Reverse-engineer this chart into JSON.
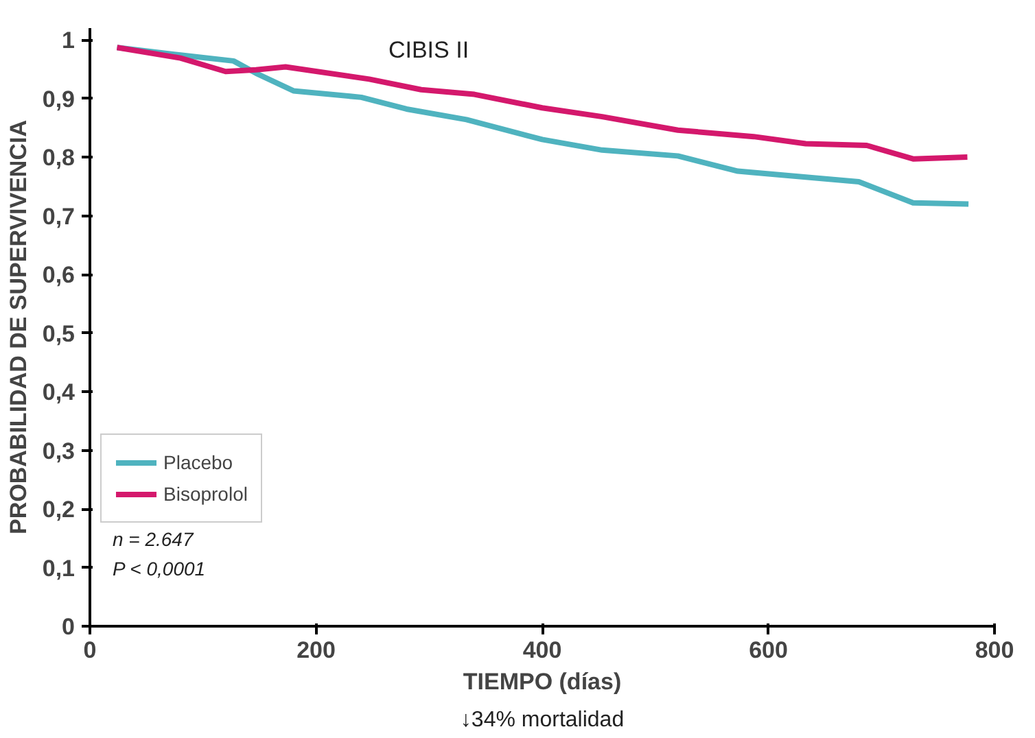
{
  "chart_data": {
    "type": "line",
    "title": "CIBIS II",
    "xlabel": "TIEMPO (días)",
    "ylabel": "PROBABILIDAD DE SUPERVIVENCIA",
    "xlim": [
      0,
      800
    ],
    "xticks": [
      0,
      200,
      400,
      600,
      800
    ],
    "ylim": [
      0,
      1.02
    ],
    "yticks": [
      {
        "value": 0,
        "label": "0"
      },
      {
        "value": 0.1,
        "label": "0,1"
      },
      {
        "value": 0.2,
        "label": "0,2"
      },
      {
        "value": 0.3,
        "label": "0,3"
      },
      {
        "value": 0.4,
        "label": "0,4"
      },
      {
        "value": 0.5,
        "label": "0,5"
      },
      {
        "value": 0.6,
        "label": "0,6"
      },
      {
        "value": 0.7,
        "label": "0,7"
      },
      {
        "value": 0.8,
        "label": "0,8"
      },
      {
        "value": 0.9,
        "label": "0,9"
      },
      {
        "value": 1,
        "label": "1"
      }
    ],
    "grid": false,
    "legend": "bottom left",
    "series": [
      {
        "name": "Placebo",
        "color": "#4fb3bf",
        "x": [
          24,
          80,
          127,
          147,
          180,
          240,
          280,
          333,
          400,
          453,
          520,
          573,
          680,
          728,
          777
        ],
        "values": [
          0.987,
          0.974,
          0.964,
          0.943,
          0.913,
          0.902,
          0.882,
          0.864,
          0.83,
          0.812,
          0.802,
          0.776,
          0.758,
          0.722,
          0.72
        ]
      },
      {
        "name": "Bisoprolol",
        "color": "#d4186c",
        "x": [
          24,
          80,
          120,
          147,
          173,
          247,
          293,
          340,
          400,
          453,
          520,
          587,
          633,
          687,
          728,
          776
        ],
        "values": [
          0.987,
          0.969,
          0.946,
          0.949,
          0.954,
          0.933,
          0.915,
          0.907,
          0.884,
          0.869,
          0.846,
          0.835,
          0.823,
          0.82,
          0.797,
          0.8
        ]
      }
    ],
    "annotations": [
      "n = 2.647",
      "P < 0,0001",
      "↓34% mortalidad"
    ]
  }
}
